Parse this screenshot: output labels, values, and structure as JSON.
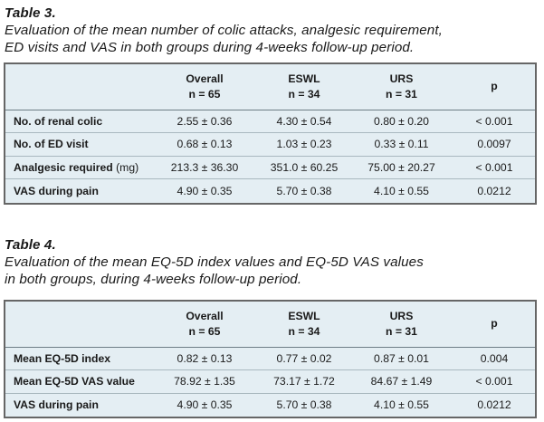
{
  "table3": {
    "label": "Table 3.",
    "caption_line1": "Evaluation of the mean number of colic attacks, analgesic requirement,",
    "caption_line2": "ED visits and VAS in both groups during 4-weeks follow-up period.",
    "headers": [
      {
        "line1": "",
        "line2": ""
      },
      {
        "line1": "Overall",
        "line2": "n = 65"
      },
      {
        "line1": "ESWL",
        "line2": "n = 34"
      },
      {
        "line1": "URS",
        "line2": "n = 31"
      },
      {
        "line1": "p",
        "line2": ""
      }
    ],
    "rows": [
      {
        "label": "No. of renal colic",
        "unit": "",
        "cells": [
          "2.55 ± 0.36",
          "4.30 ± 0.54",
          "0.80 ± 0.20",
          "< 0.001"
        ]
      },
      {
        "label": "No. of ED visit",
        "unit": "",
        "cells": [
          "0.68 ± 0.13",
          "1.03 ± 0.23",
          "0.33 ± 0.11",
          "0.0097"
        ]
      },
      {
        "label": "Analgesic required",
        "unit": "(mg)",
        "cells": [
          "213.3 ± 36.30",
          "351.0 ± 60.25",
          "75.00 ± 20.27",
          "< 0.001"
        ]
      },
      {
        "label": "VAS during pain",
        "unit": "",
        "cells": [
          "4.90 ± 0.35",
          "5.70 ± 0.38",
          "4.10 ± 0.55",
          "0.0212"
        ]
      }
    ]
  },
  "table4": {
    "label": "Table 4.",
    "caption_line1": "Evaluation of the mean EQ-5D index values and EQ-5D VAS values",
    "caption_line2": "in both groups, during 4-weeks follow-up period.",
    "headers": [
      {
        "line1": "",
        "line2": ""
      },
      {
        "line1": "Overall",
        "line2": "n = 65"
      },
      {
        "line1": "ESWL",
        "line2": "n = 34"
      },
      {
        "line1": "URS",
        "line2": "n = 31"
      },
      {
        "line1": "p",
        "line2": ""
      }
    ],
    "rows": [
      {
        "label": "Mean EQ-5D index",
        "unit": "",
        "cells": [
          "0.82 ± 0.13",
          "0.77 ± 0.02",
          "0.87 ± 0.01",
          "0.004"
        ]
      },
      {
        "label": "Mean EQ-5D VAS value",
        "unit": "",
        "cells": [
          "78.92 ± 1.35",
          "73.17 ± 1.72",
          "84.67 ± 1.49",
          "< 0.001"
        ]
      },
      {
        "label": "VAS during pain",
        "unit": "",
        "cells": [
          "4.90 ± 0.35",
          "5.70 ± 0.38",
          "4.10 ± 0.55",
          "0.0212"
        ]
      }
    ]
  }
}
